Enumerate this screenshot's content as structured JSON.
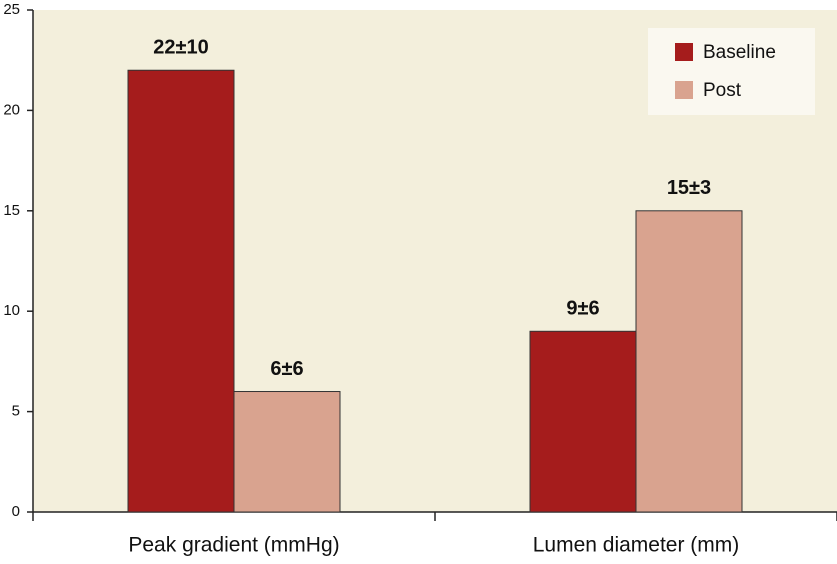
{
  "chart_data": {
    "type": "bar",
    "categories": [
      "Peak gradient (mmHg)",
      "Lumen diameter (mm)"
    ],
    "series": [
      {
        "name": "Baseline",
        "color": "#a51c1c",
        "values": [
          22,
          9
        ],
        "value_labels": [
          "22±10",
          "9±6"
        ]
      },
      {
        "name": "Post",
        "color": "#d9a38f",
        "values": [
          6,
          15
        ],
        "value_labels": [
          "6±6",
          "15±3"
        ]
      }
    ],
    "ylim": [
      0,
      25
    ],
    "yticks": [
      0,
      5,
      10,
      15,
      20,
      25
    ],
    "legend": "upper right",
    "background": "#f3efdc"
  }
}
